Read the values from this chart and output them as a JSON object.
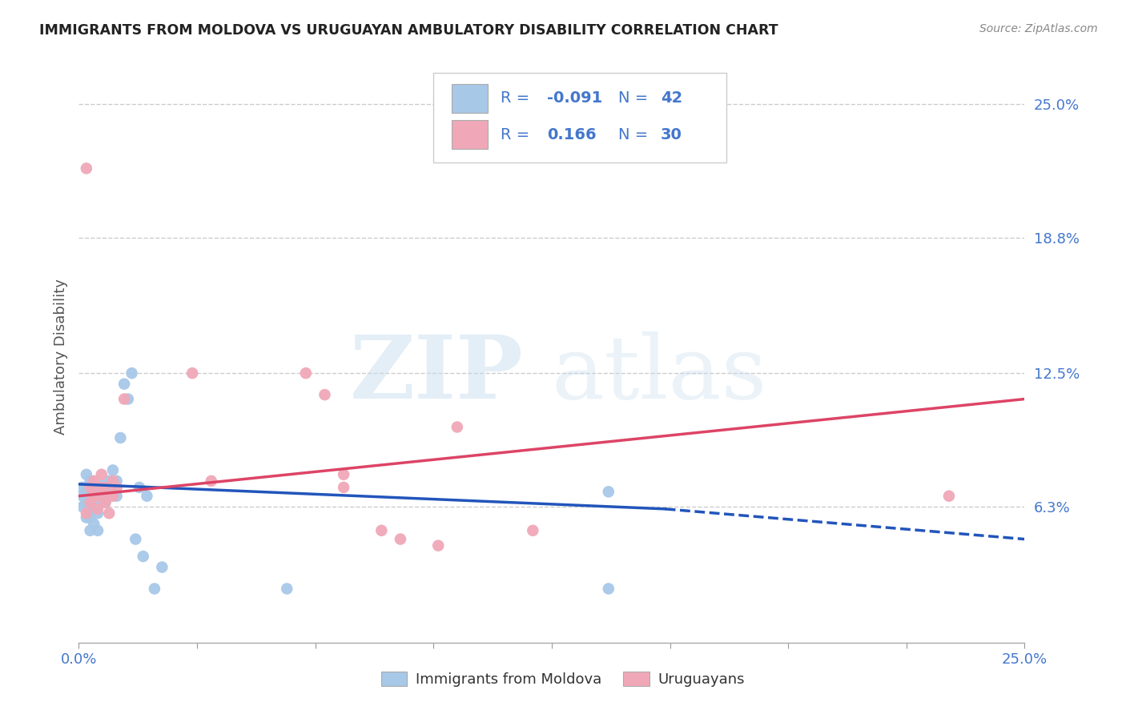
{
  "title": "IMMIGRANTS FROM MOLDOVA VS URUGUAYAN AMBULATORY DISABILITY CORRELATION CHART",
  "source": "Source: ZipAtlas.com",
  "ylabel": "Ambulatory Disability",
  "xmin": 0.0,
  "xmax": 0.25,
  "ymin": 0.0,
  "ymax": 0.265,
  "yticks": [
    0.063,
    0.125,
    0.188,
    0.25
  ],
  "ytick_labels": [
    "6.3%",
    "12.5%",
    "18.8%",
    "25.0%"
  ],
  "blue_color": "#a8c8e8",
  "pink_color": "#f0a8b8",
  "blue_line_color": "#2255bb",
  "pink_line_color": "#dd4466",
  "blue_scatter_x": [
    0.001,
    0.001,
    0.001,
    0.002,
    0.002,
    0.002,
    0.002,
    0.003,
    0.003,
    0.003,
    0.003,
    0.003,
    0.004,
    0.004,
    0.004,
    0.004,
    0.005,
    0.005,
    0.005,
    0.006,
    0.006,
    0.007,
    0.007,
    0.008,
    0.008,
    0.009,
    0.009,
    0.01,
    0.01,
    0.011,
    0.012,
    0.013,
    0.014,
    0.015,
    0.016,
    0.017,
    0.018,
    0.02,
    0.022,
    0.055,
    0.14,
    0.14
  ],
  "blue_scatter_y": [
    0.072,
    0.068,
    0.063,
    0.078,
    0.07,
    0.065,
    0.058,
    0.075,
    0.068,
    0.062,
    0.058,
    0.052,
    0.072,
    0.068,
    0.062,
    0.055,
    0.065,
    0.06,
    0.052,
    0.073,
    0.068,
    0.072,
    0.065,
    0.075,
    0.068,
    0.08,
    0.073,
    0.075,
    0.068,
    0.095,
    0.12,
    0.113,
    0.125,
    0.048,
    0.072,
    0.04,
    0.068,
    0.025,
    0.035,
    0.025,
    0.07,
    0.025
  ],
  "pink_scatter_x": [
    0.002,
    0.003,
    0.003,
    0.004,
    0.004,
    0.005,
    0.005,
    0.006,
    0.006,
    0.007,
    0.007,
    0.008,
    0.008,
    0.009,
    0.009,
    0.01,
    0.012,
    0.03,
    0.035,
    0.06,
    0.065,
    0.07,
    0.07,
    0.08,
    0.085,
    0.095,
    0.1,
    0.12,
    0.23,
    0.002
  ],
  "pink_scatter_y": [
    0.22,
    0.072,
    0.065,
    0.075,
    0.068,
    0.068,
    0.062,
    0.078,
    0.072,
    0.072,
    0.065,
    0.068,
    0.06,
    0.075,
    0.068,
    0.072,
    0.113,
    0.125,
    0.075,
    0.125,
    0.115,
    0.078,
    0.072,
    0.052,
    0.048,
    0.045,
    0.1,
    0.052,
    0.068,
    0.06
  ],
  "blue_line_x0": 0.0,
  "blue_line_y0": 0.0735,
  "blue_line_x1_solid": 0.155,
  "blue_line_y1_solid": 0.062,
  "blue_line_x1_dashed": 0.25,
  "blue_line_y1_dashed": 0.048,
  "pink_line_x0": 0.0,
  "pink_line_y0": 0.068,
  "pink_line_x1": 0.25,
  "pink_line_y1": 0.113,
  "legend_label_blue": "Immigrants from Moldova",
  "legend_label_pink": "Uruguayans",
  "watermark_zip": "ZIP",
  "watermark_atlas": "atlas",
  "R_blue": "-0.091",
  "N_blue": "42",
  "R_pink": "0.166",
  "N_pink": "30",
  "text_color_blue": "#4477cc",
  "grid_color": "#cccccc",
  "background_color": "#ffffff"
}
